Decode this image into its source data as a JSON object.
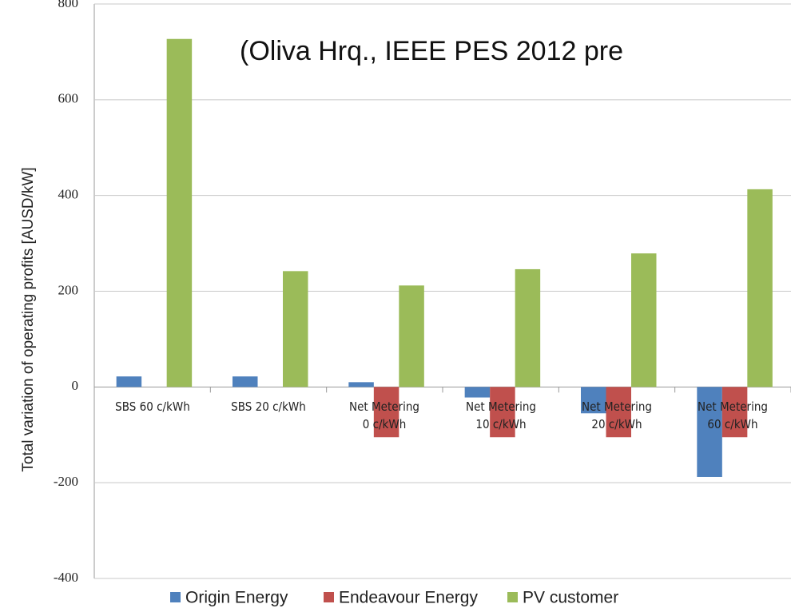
{
  "chart_data": {
    "type": "bar",
    "annotation": "(Oliva Hrq., IEEE PES 2012 pre",
    "y_label": "Total variation of operating profits [AUSD/kW]",
    "categories": [
      "SBS 60 c/kWh",
      "SBS 20 c/kWh",
      "Net Metering\n0 c/kWh",
      "Net Metering\n10 c/kWh",
      "Net Metering\n20 c/kWh",
      "Net Metering\n60 c/kWh"
    ],
    "series": [
      {
        "name": "Origin Energy",
        "color": "#4f81bd",
        "values": [
          22,
          22,
          10,
          -22,
          -55,
          -188
        ]
      },
      {
        "name": "Endeavour Energy",
        "color": "#c0504d",
        "values": [
          0,
          0,
          -105,
          -105,
          -105,
          -105
        ]
      },
      {
        "name": "PV customer",
        "color": "#9bbb59",
        "values": [
          727,
          242,
          212,
          246,
          279,
          413
        ]
      }
    ],
    "ylim": [
      -400,
      800
    ],
    "yticks": [
      -400,
      -200,
      0,
      200,
      400,
      600,
      800
    ],
    "grid": true,
    "legend": "bottom"
  }
}
